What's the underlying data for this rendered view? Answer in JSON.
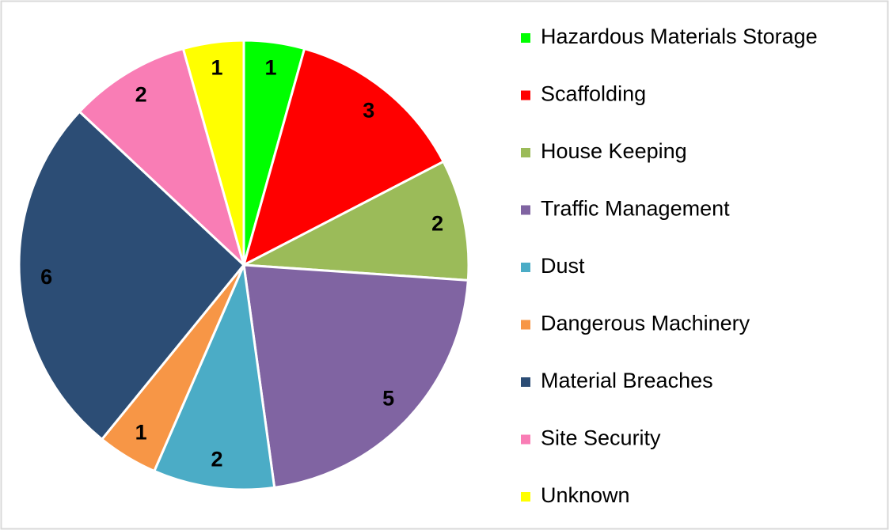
{
  "chart_data": {
    "type": "pie",
    "categories": [
      "Hazardous Materials Storage",
      "Scaffolding",
      "House Keeping",
      "Traffic Management",
      "Dust",
      "Dangerous Machinery",
      "Material Breaches",
      "Site Security",
      "Unknown"
    ],
    "values": [
      1,
      3,
      2,
      5,
      2,
      1,
      6,
      2,
      1
    ],
    "colors": [
      "#00ff00",
      "#ff0000",
      "#9bbb59",
      "#8064a2",
      "#4bacc6",
      "#f79646",
      "#2c4d75",
      "#f97db5",
      "#ffff00"
    ],
    "legend": "right"
  }
}
